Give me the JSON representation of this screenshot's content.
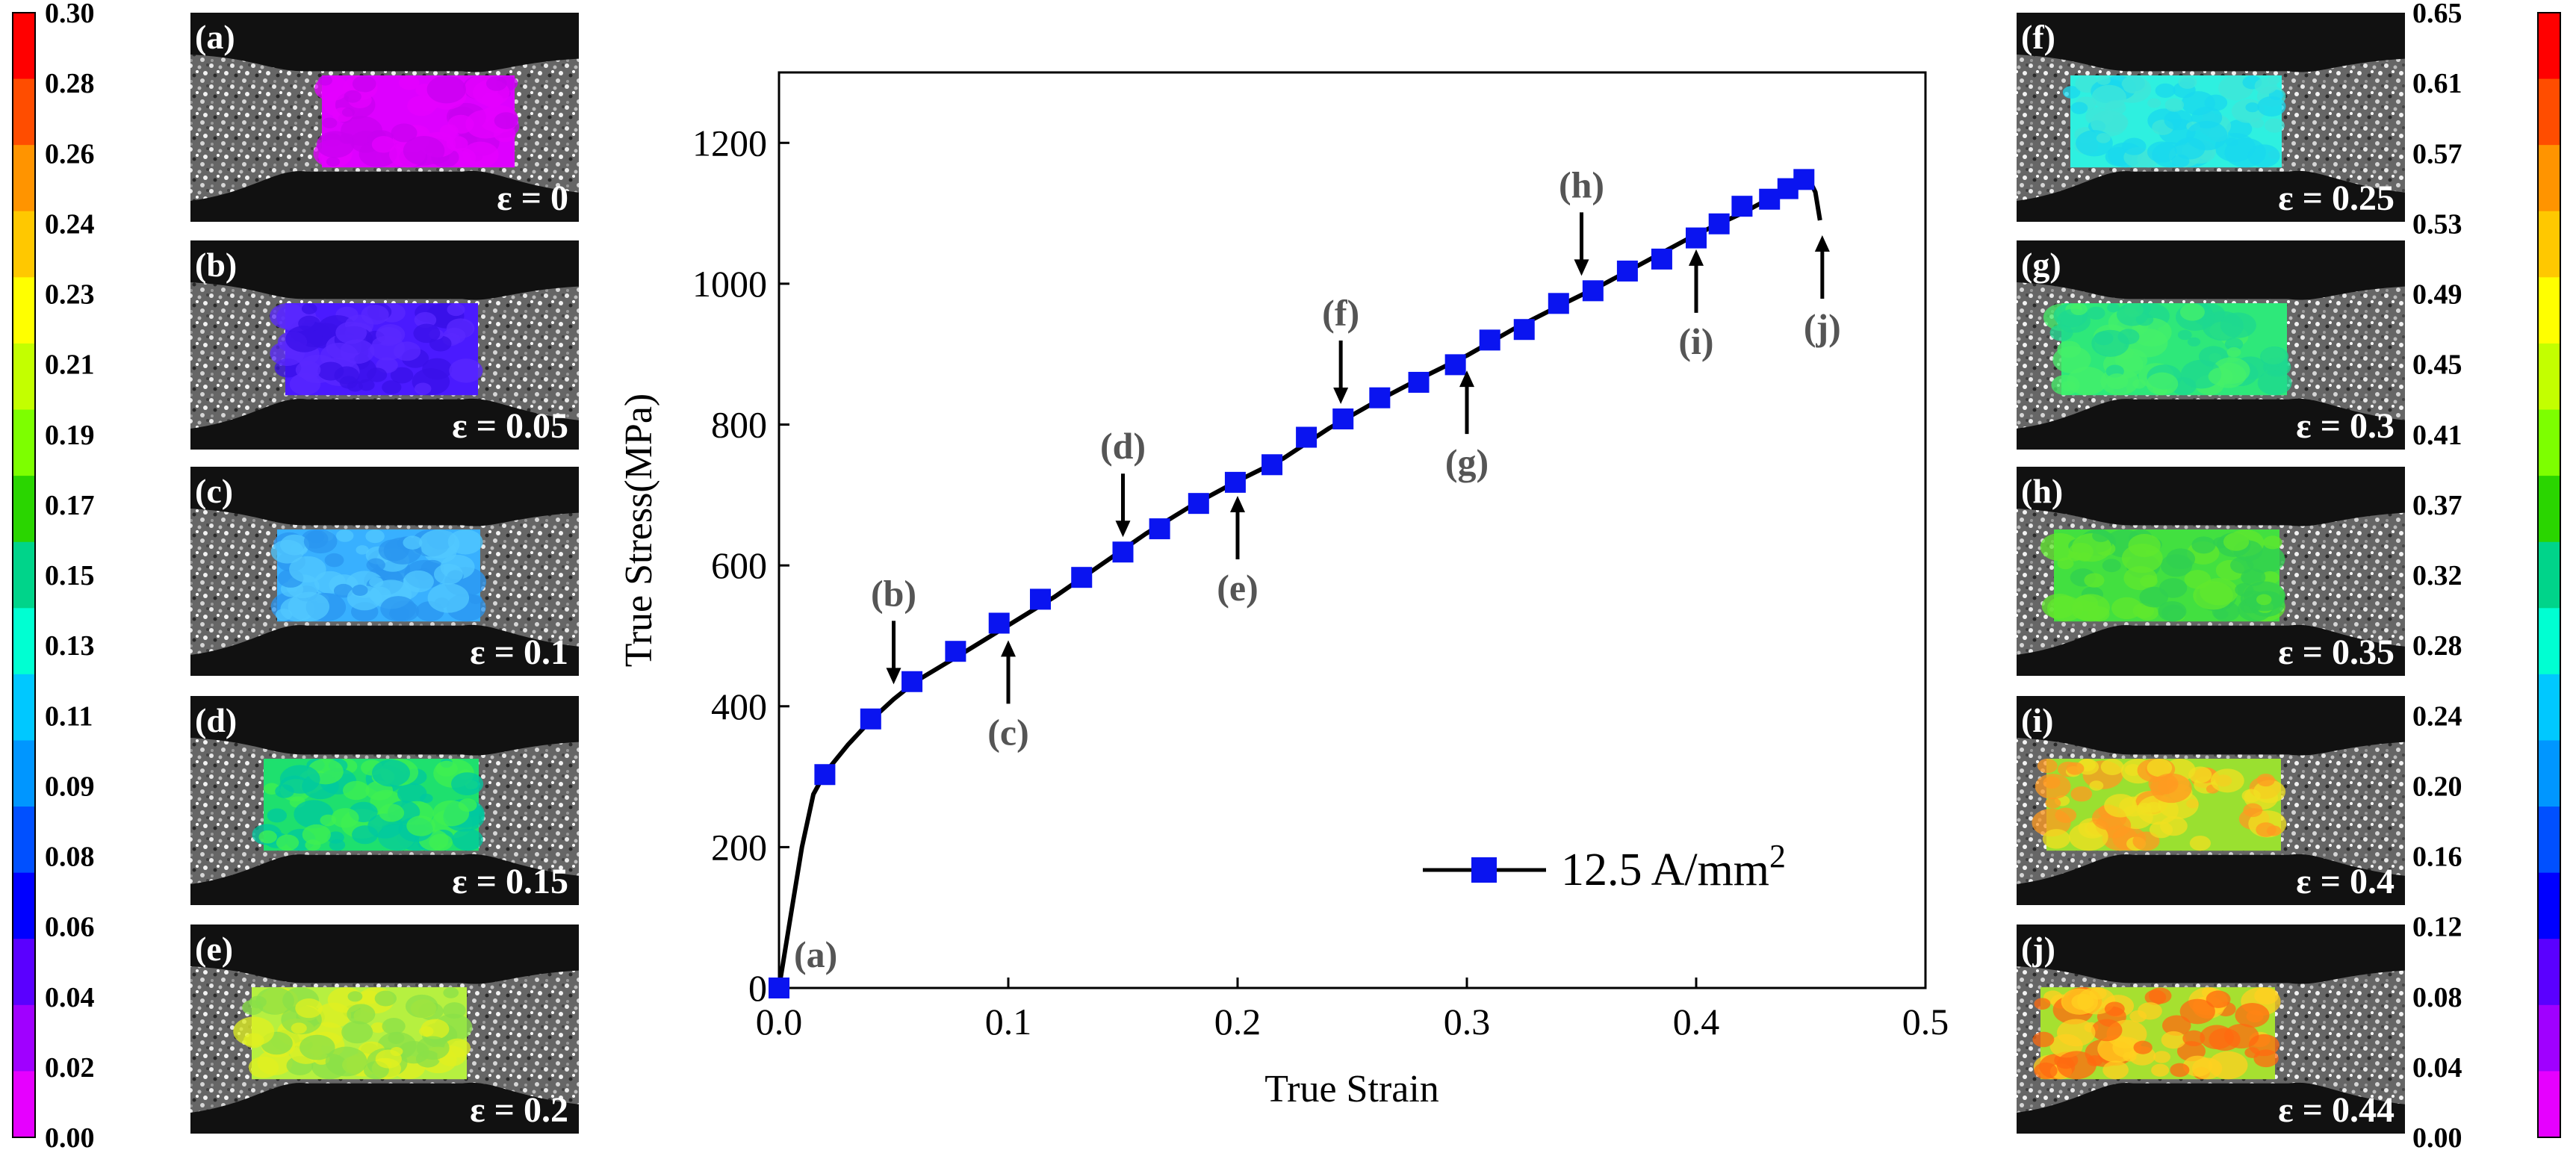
{
  "left_colorbar": {
    "ticks": [
      "0.30",
      "0.28",
      "0.26",
      "0.24",
      "0.23",
      "0.21",
      "0.19",
      "0.17",
      "0.15",
      "0.13",
      "0.11",
      "0.09",
      "0.08",
      "0.06",
      "0.04",
      "0.02",
      "0.00"
    ],
    "colors": [
      "#ff0000",
      "#ff4d00",
      "#ff9400",
      "#ffc800",
      "#ffff00",
      "#c3ff00",
      "#7dff00",
      "#2ad500",
      "#00d48a",
      "#00ffd2",
      "#00c8ff",
      "#0096ff",
      "#0050ff",
      "#0000ff",
      "#5a00ff",
      "#a000ff",
      "#e600ff"
    ]
  },
  "right_colorbar": {
    "ticks": [
      "0.65",
      "0.61",
      "0.57",
      "0.53",
      "0.49",
      "0.45",
      "0.41",
      "0.37",
      "0.32",
      "0.28",
      "0.24",
      "0.20",
      "0.16",
      "0.12",
      "0.08",
      "0.04",
      "0.00"
    ],
    "colors": [
      "#ff0000",
      "#ff4d00",
      "#ff9400",
      "#ffc800",
      "#ffff00",
      "#c3ff00",
      "#7dff00",
      "#2ad500",
      "#00d48a",
      "#00ffd2",
      "#00c8ff",
      "#0096ff",
      "#0050ff",
      "#0000ff",
      "#5a00ff",
      "#a000ff",
      "#e600ff"
    ]
  },
  "dic_panels": [
    {
      "id": "a",
      "label": "(a)",
      "strain_text": "ε = 0",
      "field_colors": [
        "#dd00ff",
        "#c800f0",
        "#e400ff"
      ]
    },
    {
      "id": "b",
      "label": "(b)",
      "strain_text": "ε = 0.05",
      "field_colors": [
        "#4a1aff",
        "#3a10e8",
        "#5a28ff"
      ]
    },
    {
      "id": "c",
      "label": "(c)",
      "strain_text": "ε = 0.1",
      "field_colors": [
        "#38b0ff",
        "#2a96f0",
        "#52c8ff"
      ]
    },
    {
      "id": "d",
      "label": "(d)",
      "strain_text": "ε = 0.15",
      "field_colors": [
        "#1ee06e",
        "#00c8a0",
        "#40f050"
      ]
    },
    {
      "id": "e",
      "label": "(e)",
      "strain_text": "ε = 0.2",
      "field_colors": [
        "#b6f040",
        "#e0f020",
        "#8ae048"
      ]
    },
    {
      "id": "f",
      "label": "(f)",
      "strain_text": "ε = 0.25",
      "field_colors": [
        "#2ef0e0",
        "#40e6d8",
        "#1ad8ee"
      ]
    },
    {
      "id": "g",
      "label": "(g)",
      "strain_text": "ε = 0.3",
      "field_colors": [
        "#2ee87a",
        "#1ed890",
        "#46f06a"
      ]
    },
    {
      "id": "h",
      "label": "(h)",
      "strain_text": "ε = 0.35",
      "field_colors": [
        "#42e040",
        "#60e82e",
        "#30d050"
      ]
    },
    {
      "id": "i",
      "label": "(i)",
      "strain_text": "ε = 0.4",
      "field_colors": [
        "#9ae030",
        "#f0e020",
        "#ff9a20"
      ]
    },
    {
      "id": "j",
      "label": "(j)",
      "strain_text": "ε = 0.44",
      "field_colors": [
        "#a6e030",
        "#ff6a10",
        "#ffd020"
      ]
    }
  ],
  "chart_data": {
    "type": "line",
    "xlabel": "True Strain",
    "ylabel": "True Stress(MPa)",
    "xlim": [
      0.0,
      0.5
    ],
    "ylim": [
      0,
      1300
    ],
    "x_ticks": [
      "0.0",
      "0.1",
      "0.2",
      "0.3",
      "0.4",
      "0.5"
    ],
    "y_ticks": [
      "0",
      "200",
      "400",
      "600",
      "800",
      "1000",
      "1200"
    ],
    "series": [
      {
        "name": "12.5 A/mm",
        "name_superscript": "2",
        "color": "#0a14f0",
        "line_color": "#000000",
        "curve": [
          [
            0,
            0
          ],
          [
            0.005,
            100
          ],
          [
            0.01,
            200
          ],
          [
            0.015,
            275
          ],
          [
            0.02,
            305
          ],
          [
            0.03,
            345
          ],
          [
            0.04,
            380
          ],
          [
            0.05,
            410
          ],
          [
            0.06,
            436
          ],
          [
            0.08,
            475
          ],
          [
            0.1,
            515
          ],
          [
            0.12,
            555
          ],
          [
            0.14,
            600
          ],
          [
            0.16,
            645
          ],
          [
            0.18,
            685
          ],
          [
            0.2,
            720
          ],
          [
            0.22,
            752
          ],
          [
            0.24,
            795
          ],
          [
            0.26,
            832
          ],
          [
            0.28,
            866
          ],
          [
            0.3,
            898
          ],
          [
            0.32,
            935
          ],
          [
            0.34,
            968
          ],
          [
            0.36,
            1000
          ],
          [
            0.38,
            1035
          ],
          [
            0.4,
            1070
          ],
          [
            0.42,
            1100
          ],
          [
            0.44,
            1135
          ],
          [
            0.449,
            1150
          ],
          [
            0.452,
            1130
          ],
          [
            0.454,
            1090
          ]
        ],
        "markers": [
          [
            0,
            0
          ],
          [
            0.02,
            303
          ],
          [
            0.04,
            382
          ],
          [
            0.058,
            435
          ],
          [
            0.077,
            478
          ],
          [
            0.096,
            518
          ],
          [
            0.114,
            552
          ],
          [
            0.132,
            583
          ],
          [
            0.15,
            619
          ],
          [
            0.166,
            652
          ],
          [
            0.183,
            688
          ],
          [
            0.199,
            718
          ],
          [
            0.215,
            743
          ],
          [
            0.23,
            782
          ],
          [
            0.246,
            808
          ],
          [
            0.262,
            838
          ],
          [
            0.279,
            860
          ],
          [
            0.295,
            885
          ],
          [
            0.31,
            920
          ],
          [
            0.325,
            935
          ],
          [
            0.34,
            972
          ],
          [
            0.355,
            990
          ],
          [
            0.37,
            1018
          ],
          [
            0.385,
            1035
          ],
          [
            0.4,
            1065
          ],
          [
            0.41,
            1085
          ],
          [
            0.42,
            1110
          ],
          [
            0.432,
            1120
          ],
          [
            0.44,
            1135
          ],
          [
            0.447,
            1148
          ]
        ]
      }
    ],
    "annotations": [
      {
        "label": "(a)",
        "x": 0.0,
        "y": 0,
        "arrow": "none"
      },
      {
        "label": "(b)",
        "x": 0.05,
        "y": 410,
        "arrow": "down"
      },
      {
        "label": "(c)",
        "x": 0.1,
        "y": 515,
        "arrow": "up"
      },
      {
        "label": "(d)",
        "x": 0.15,
        "y": 619,
        "arrow": "down"
      },
      {
        "label": "(e)",
        "x": 0.2,
        "y": 720,
        "arrow": "up"
      },
      {
        "label": "(f)",
        "x": 0.245,
        "y": 808,
        "arrow": "down"
      },
      {
        "label": "(g)",
        "x": 0.3,
        "y": 898,
        "arrow": "up"
      },
      {
        "label": "(h)",
        "x": 0.35,
        "y": 990,
        "arrow": "down"
      },
      {
        "label": "(i)",
        "x": 0.4,
        "y": 1070,
        "arrow": "up"
      },
      {
        "label": "(j)",
        "x": 0.455,
        "y": 1090,
        "arrow": "up"
      }
    ],
    "legend_position": "bottom-right"
  }
}
